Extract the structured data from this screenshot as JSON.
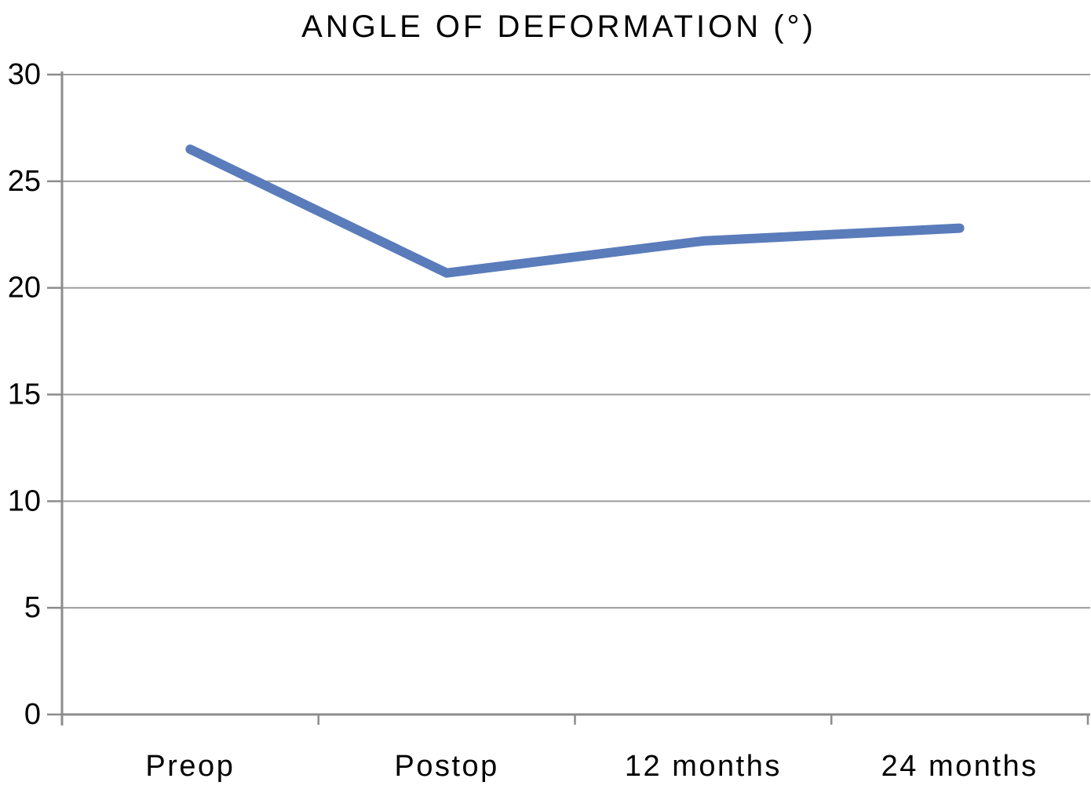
{
  "chart_data": {
    "type": "line",
    "title": "ANGLE OF DEFORMATION (°)",
    "categories": [
      "Preop",
      "Postop",
      "12 months",
      "24 months"
    ],
    "values": [
      26.5,
      20.7,
      22.2,
      22.8
    ],
    "xlabel": "",
    "ylabel": "",
    "ylim": [
      0,
      30
    ],
    "y_ticks": [
      0,
      5,
      10,
      15,
      20,
      25,
      30
    ],
    "grid": "horizontal",
    "legend": "none",
    "colors": {
      "line": "#5b7cbb",
      "gridline": "#9b9b9b",
      "axis": "#8c8c8c",
      "text": "#000000",
      "background": "#ffffff"
    }
  }
}
